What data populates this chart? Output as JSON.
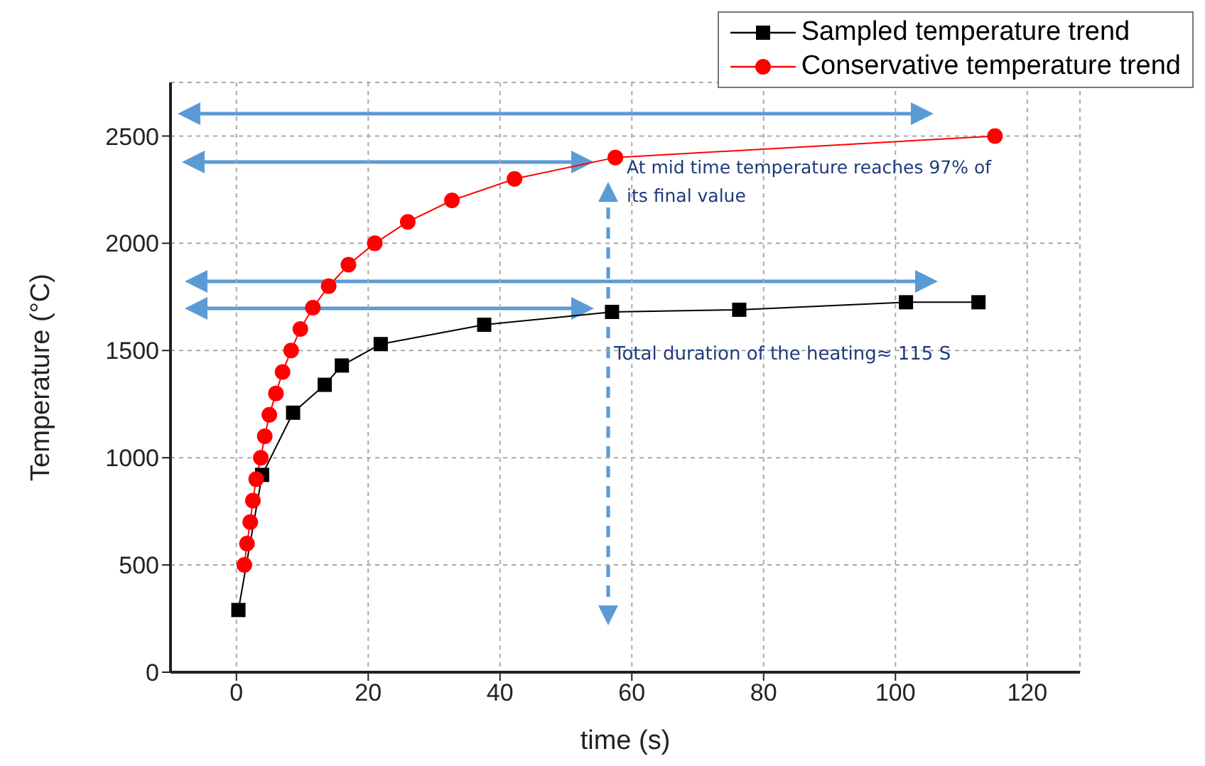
{
  "chart_data": {
    "type": "line",
    "xlabel": "time (s)",
    "ylabel": "Temperature (°C)",
    "xlim": [
      -10,
      128
    ],
    "xticks": [
      0,
      20,
      40,
      60,
      80,
      100,
      120
    ],
    "ylim": [
      0,
      2750
    ],
    "yticks": [
      0,
      500,
      1000,
      1500,
      2000,
      2500
    ],
    "grid": true,
    "legend": "top right",
    "series": [
      {
        "name": "Sampled temperature trend",
        "color": "#000000",
        "marker": "square",
        "x": [
          0.3,
          3.9,
          8.6,
          13.4,
          16.0,
          21.9,
          37.6,
          57.0,
          76.3,
          101.6,
          112.6
        ],
        "values": [
          290,
          920,
          1210,
          1340,
          1430,
          1530,
          1620,
          1680,
          1690,
          1725,
          1725
        ]
      },
      {
        "name": "Conservative temperature trend",
        "color": "#ff0000",
        "marker": "circle",
        "x": [
          1.2,
          1.6,
          2.1,
          2.5,
          3.0,
          3.7,
          4.3,
          5.0,
          6.0,
          7.0,
          8.3,
          9.7,
          11.6,
          14.0,
          17.0,
          21.0,
          26.0,
          32.7,
          42.2,
          57.5,
          115.1
        ],
        "values": [
          500,
          600,
          700,
          800,
          900,
          1000,
          1100,
          1200,
          1300,
          1400,
          1500,
          1600,
          1700,
          1800,
          1900,
          2000,
          2100,
          2200,
          2300,
          2400,
          2500
        ]
      }
    ],
    "annotations": [
      "At mid time temperature reaches 97% of its final value",
      "Total duration of the heating≈ 115 S"
    ]
  }
}
